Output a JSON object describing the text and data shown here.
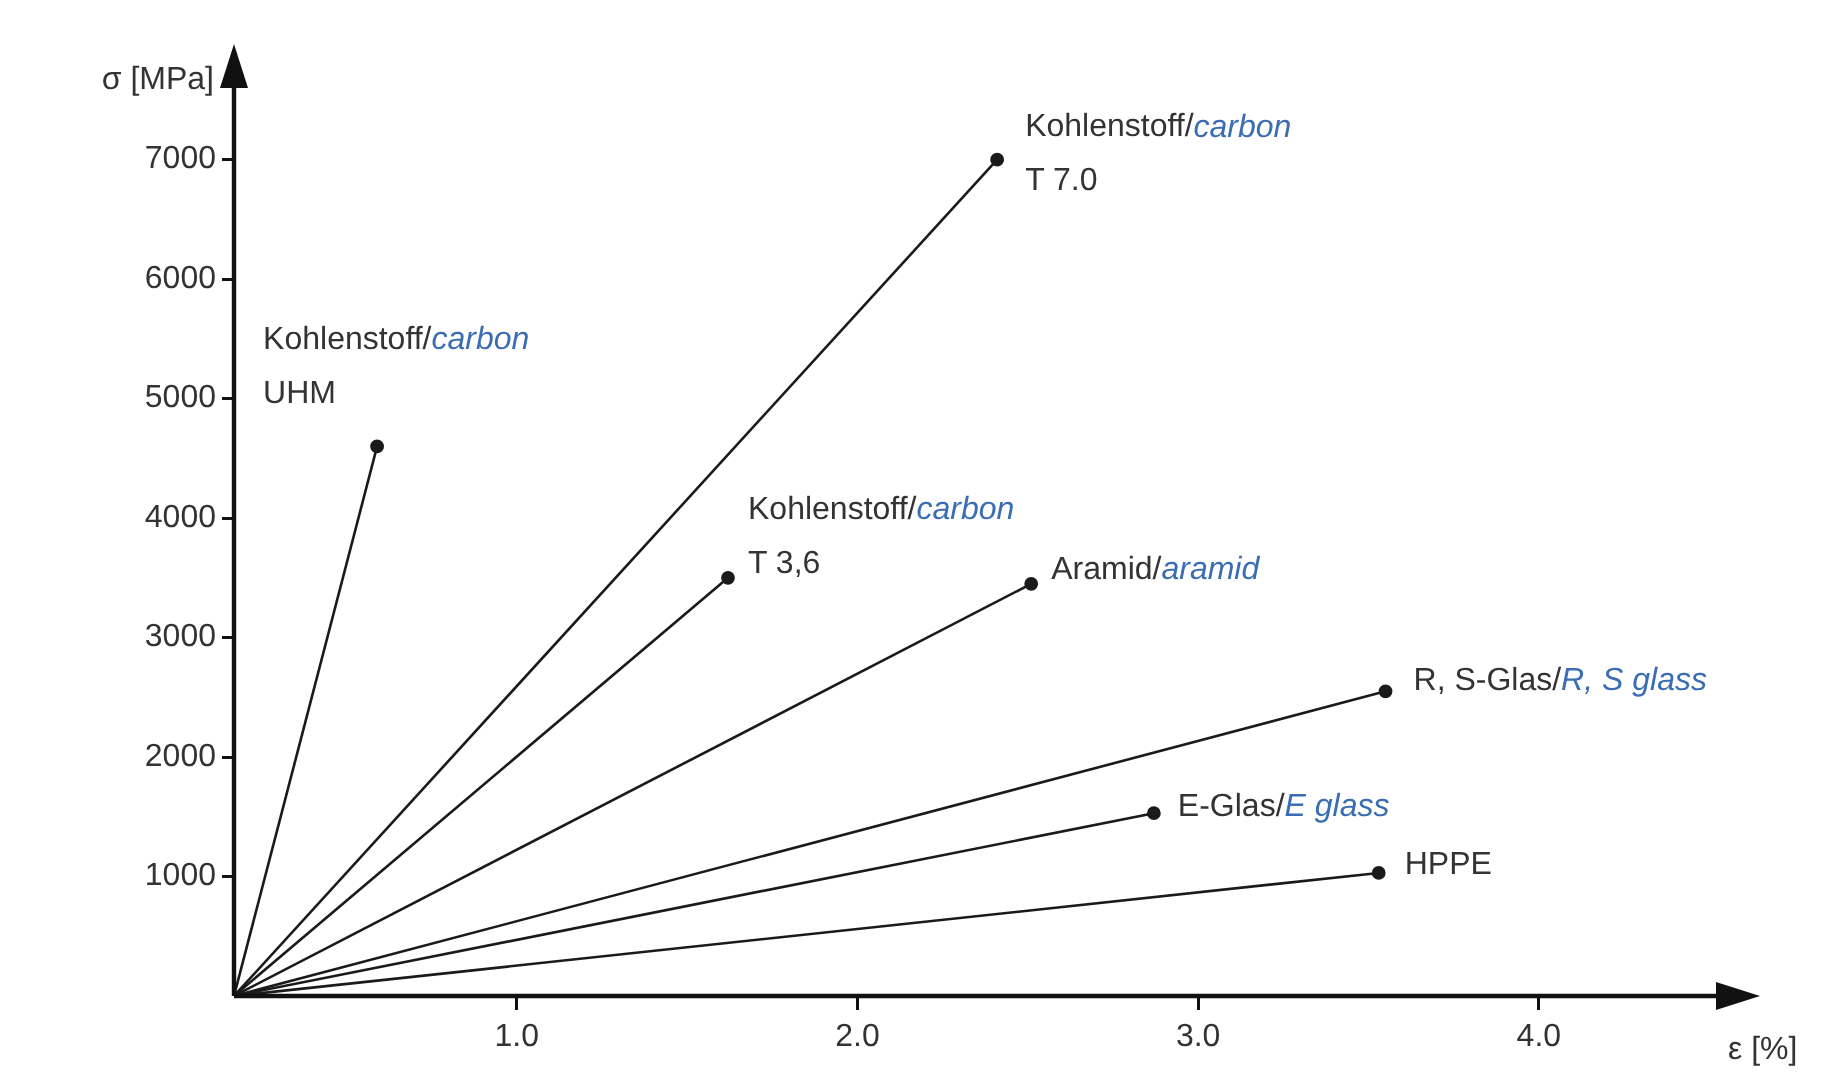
{
  "chart_data": {
    "type": "line",
    "xlabel": "ε [%]",
    "ylabel": "σ [MPa]",
    "xlim": [
      0.17,
      4.52
    ],
    "ylim": [
      0,
      7600
    ],
    "xticks": [
      {
        "value": 1,
        "label": "1.0"
      },
      {
        "value": 2,
        "label": "2.0"
      },
      {
        "value": 3,
        "label": "3.0"
      },
      {
        "value": 4,
        "label": "4.0"
      }
    ],
    "yticks": [
      1000,
      2000,
      3000,
      4000,
      5000,
      6000,
      7000
    ],
    "grid": false,
    "legend": false,
    "marker": "circle",
    "line_style": "solid",
    "series": [
      {
        "name": "Kohlenstoff/carbon\nUHM",
        "color": "#1a1a1a",
        "x": [
          0.17,
          0.59
        ],
        "values": [
          0,
          4600
        ]
      },
      {
        "name": "Kohlenstoff/carbon\nT 3,6",
        "color": "#1a1a1a",
        "x": [
          0.17,
          1.62
        ],
        "values": [
          0,
          3500
        ]
      },
      {
        "name": "Kohlenstoff/carbon\nT 7.0",
        "color": "#1a1a1a",
        "x": [
          0.17,
          2.41
        ],
        "values": [
          0,
          7000
        ]
      },
      {
        "name": "Aramid/aramid",
        "color": "#1a1a1a",
        "x": [
          0.17,
          2.51
        ],
        "values": [
          0,
          3450
        ]
      },
      {
        "name": "R, S-Glas/R, S glass",
        "color": "#1a1a1a",
        "x": [
          0.17,
          3.55
        ],
        "values": [
          0,
          2550
        ]
      },
      {
        "name": "E-Glas/E glass",
        "color": "#1a1a1a",
        "x": [
          0.17,
          2.87
        ],
        "values": [
          0,
          1530
        ]
      },
      {
        "name": "HPPE",
        "color": "#1a1a1a",
        "x": [
          0.17,
          3.53
        ],
        "values": [
          0,
          1030
        ]
      }
    ]
  }
}
